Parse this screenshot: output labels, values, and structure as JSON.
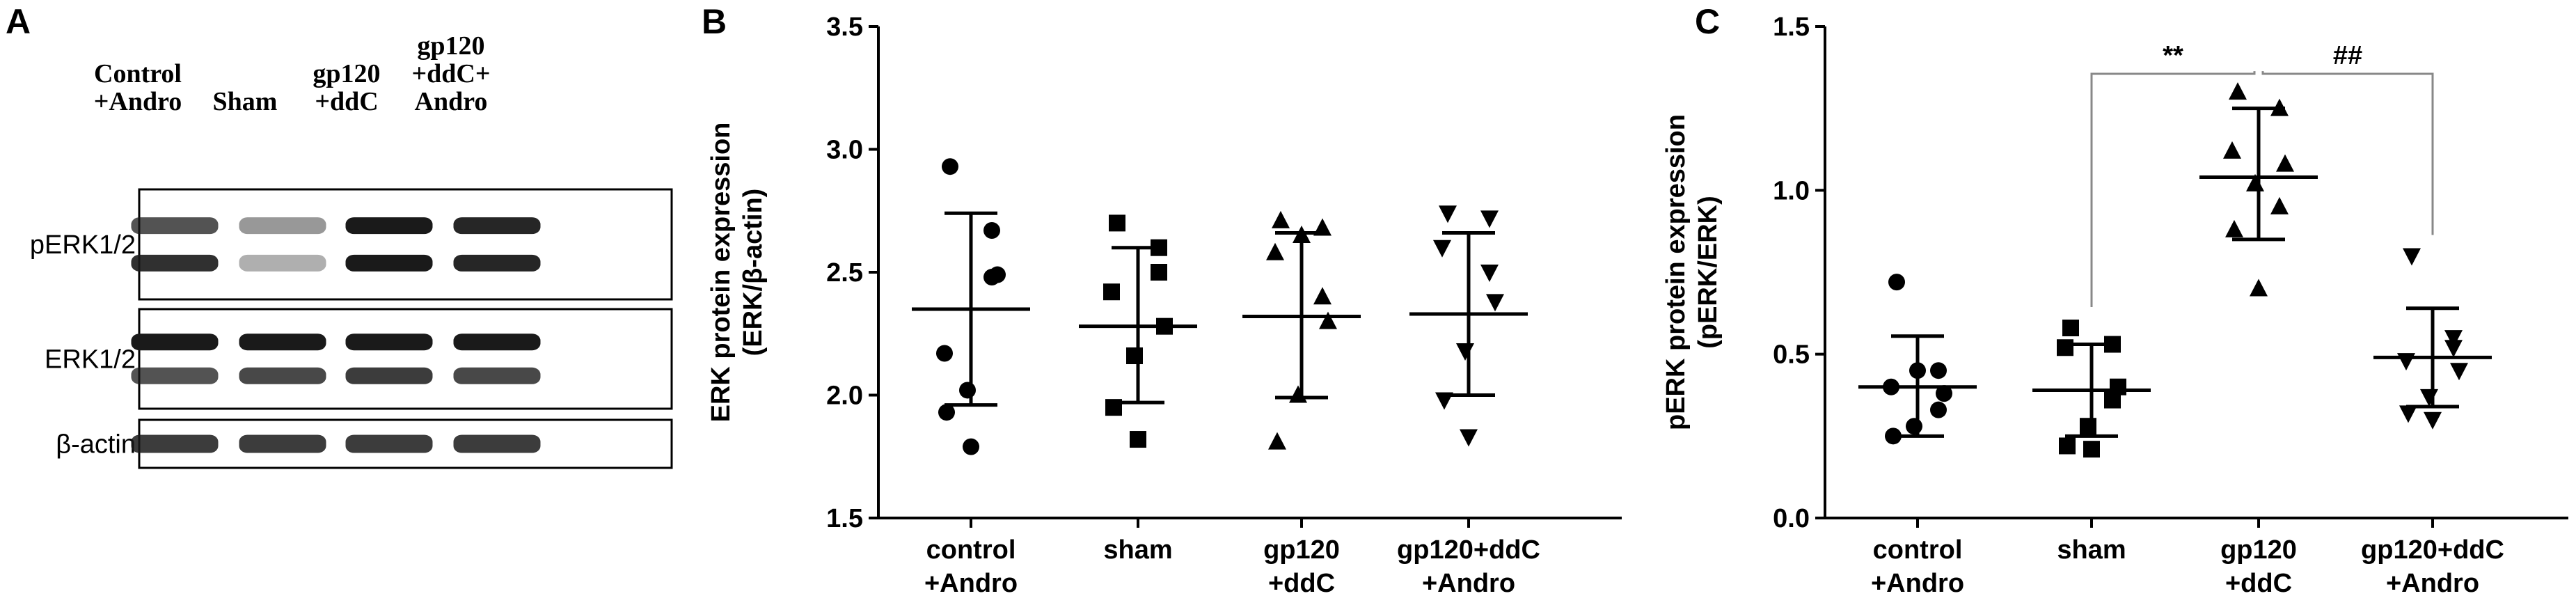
{
  "panels": {
    "a": "A",
    "b": "B",
    "c": "C"
  },
  "blot": {
    "lanes": [
      {
        "lines": [
          "Control",
          "+Andro"
        ]
      },
      {
        "lines": [
          "Sham"
        ]
      },
      {
        "lines": [
          "gp120",
          "+ddC"
        ]
      },
      {
        "lines": [
          "gp120",
          "+ddC+",
          "Andro"
        ]
      }
    ],
    "rows": [
      {
        "label": "pERK1/2",
        "bands": [
          [
            0.75,
            0.9
          ],
          [
            0.45,
            0.35
          ],
          [
            1.0,
            1.0
          ],
          [
            0.95,
            0.95
          ]
        ]
      },
      {
        "label": "ERK1/2",
        "bands": [
          [
            1.0,
            0.75
          ],
          [
            1.0,
            0.8
          ],
          [
            1.0,
            0.85
          ],
          [
            1.0,
            0.8
          ]
        ]
      },
      {
        "label": "β-actin",
        "bands": [
          [
            0.85
          ],
          [
            0.85
          ],
          [
            0.85
          ],
          [
            0.85
          ]
        ]
      }
    ],
    "band_color": "#1a1a1a"
  },
  "chart_data": [
    {
      "type": "scatter",
      "categories": [
        [
          "control",
          "+Andro"
        ],
        [
          "sham"
        ],
        [
          "gp120",
          "+ddC"
        ],
        [
          "gp120+ddC",
          "+Andro"
        ]
      ],
      "ylabel_lines": [
        "ERK protein expression",
        "(ERK/β-actin)"
      ],
      "ylim": [
        1.5,
        3.5
      ],
      "yticks": [
        1.5,
        2.0,
        2.5,
        3.0,
        3.5
      ],
      "ytick_labels": [
        "1.5",
        "2.0",
        "2.5",
        "3.0",
        "3.5"
      ],
      "series": [
        {
          "marker": "circle",
          "mean": 2.35,
          "sd_upper": 2.74,
          "sd_lower": 1.96,
          "points": [
            2.93,
            2.48,
            2.17,
            2.49,
            2.02,
            1.93,
            1.79,
            2.67
          ]
        },
        {
          "marker": "square",
          "mean": 2.28,
          "sd_upper": 2.6,
          "sd_lower": 1.97,
          "points": [
            2.7,
            2.6,
            2.42,
            2.28,
            2.16,
            1.95,
            1.82,
            2.5
          ]
        },
        {
          "marker": "triangle-up",
          "mean": 2.32,
          "sd_upper": 2.66,
          "sd_lower": 1.99,
          "points": [
            2.71,
            2.68,
            2.58,
            2.3,
            2.0,
            1.81,
            2.65,
            2.4
          ]
        },
        {
          "marker": "triangle-down",
          "mean": 2.33,
          "sd_upper": 2.66,
          "sd_lower": 2.0,
          "points": [
            2.74,
            2.72,
            2.6,
            2.38,
            2.18,
            1.98,
            1.83,
            2.5
          ]
        }
      ]
    },
    {
      "type": "scatter",
      "categories": [
        [
          "control",
          "+Andro"
        ],
        [
          "sham"
        ],
        [
          "gp120",
          "+ddC"
        ],
        [
          "gp120+ddC",
          "+Andro"
        ]
      ],
      "ylabel_lines": [
        "pERK protein expression",
        "(pERK/ERK)"
      ],
      "ylim": [
        0.0,
        1.5
      ],
      "yticks": [
        0.0,
        0.5,
        1.0,
        1.5
      ],
      "ytick_labels": [
        "0.0",
        "0.5",
        "1.0",
        "1.5"
      ],
      "series": [
        {
          "marker": "circle",
          "mean": 0.4,
          "sd_upper": 0.555,
          "sd_lower": 0.25,
          "points": [
            0.72,
            0.45,
            0.4,
            0.38,
            0.28,
            0.25,
            0.45,
            0.33
          ]
        },
        {
          "marker": "square",
          "mean": 0.39,
          "sd_upper": 0.53,
          "sd_lower": 0.25,
          "points": [
            0.58,
            0.53,
            0.52,
            0.4,
            0.28,
            0.22,
            0.21,
            0.36
          ]
        },
        {
          "marker": "triangle-up",
          "mean": 1.04,
          "sd_upper": 1.25,
          "sd_lower": 0.85,
          "points": [
            1.3,
            1.25,
            1.12,
            1.08,
            1.02,
            0.88,
            0.7,
            0.95
          ]
        },
        {
          "marker": "triangle-down",
          "mean": 0.49,
          "sd_upper": 0.64,
          "sd_lower": 0.34,
          "points": [
            0.8,
            0.55,
            0.48,
            0.45,
            0.37,
            0.32,
            0.3,
            0.52
          ]
        }
      ],
      "significance": [
        {
          "from": 1,
          "to": 2,
          "label": "**"
        },
        {
          "from": 2,
          "to": 3,
          "label": "##"
        }
      ]
    }
  ]
}
